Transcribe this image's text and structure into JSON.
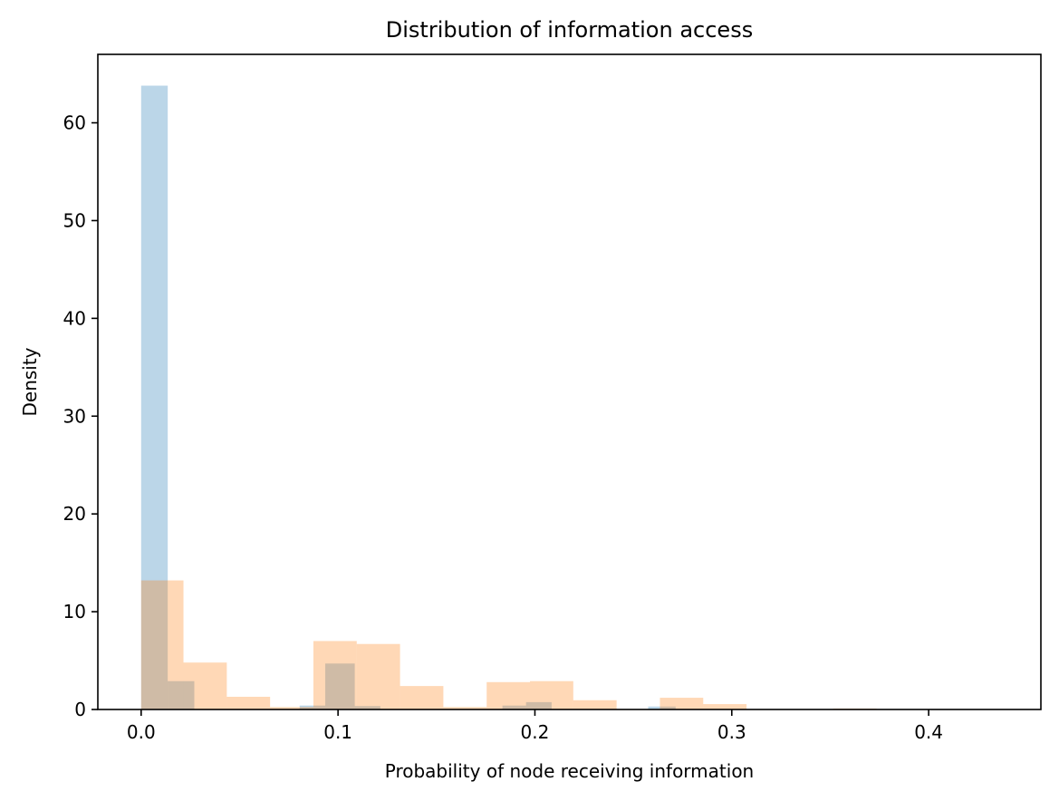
{
  "chart_data": {
    "type": "bar",
    "title": "Distribution of information access",
    "xlabel": "Probability of node receiving information",
    "ylabel": "Density",
    "xlim": [
      -0.022,
      0.457
    ],
    "ylim": [
      0,
      67
    ],
    "xticks": [
      0.0,
      0.1,
      0.2,
      0.3,
      0.4
    ],
    "xtick_labels": [
      "0.0",
      "0.1",
      "0.2",
      "0.3",
      "0.4"
    ],
    "yticks": [
      0,
      10,
      20,
      30,
      40,
      50,
      60
    ],
    "ytick_labels": [
      "0",
      "10",
      "20",
      "30",
      "40",
      "50",
      "60"
    ],
    "grid": false,
    "histogram": true,
    "series": [
      {
        "color": "#1f77b4",
        "alpha": 0.3,
        "bins": [
          {
            "x0": 0.0,
            "x1": 0.0135,
            "density": 63.8
          },
          {
            "x0": 0.0135,
            "x1": 0.027,
            "density": 2.9
          },
          {
            "x0": 0.0805,
            "x1": 0.0935,
            "density": 0.4
          },
          {
            "x0": 0.0935,
            "x1": 0.1085,
            "density": 4.7
          },
          {
            "x0": 0.1085,
            "x1": 0.1215,
            "density": 0.35
          },
          {
            "x0": 0.1835,
            "x1": 0.1955,
            "density": 0.4
          },
          {
            "x0": 0.1955,
            "x1": 0.2085,
            "density": 0.75
          },
          {
            "x0": 0.2575,
            "x1": 0.2715,
            "density": 0.3
          }
        ]
      },
      {
        "color": "#ff7f0e",
        "alpha": 0.3,
        "bins": [
          {
            "x0": 0.0,
            "x1": 0.0215,
            "density": 13.2
          },
          {
            "x0": 0.0215,
            "x1": 0.0435,
            "density": 4.8
          },
          {
            "x0": 0.0435,
            "x1": 0.0655,
            "density": 1.3
          },
          {
            "x0": 0.0655,
            "x1": 0.0875,
            "density": 0.25
          },
          {
            "x0": 0.0875,
            "x1": 0.1095,
            "density": 7.0
          },
          {
            "x0": 0.1095,
            "x1": 0.1315,
            "density": 6.7
          },
          {
            "x0": 0.1315,
            "x1": 0.1535,
            "density": 2.4
          },
          {
            "x0": 0.1535,
            "x1": 0.1755,
            "density": 0.25
          },
          {
            "x0": 0.1755,
            "x1": 0.1975,
            "density": 2.8
          },
          {
            "x0": 0.1975,
            "x1": 0.2195,
            "density": 2.9
          },
          {
            "x0": 0.2195,
            "x1": 0.2415,
            "density": 0.95
          },
          {
            "x0": 0.2635,
            "x1": 0.2855,
            "density": 1.2
          },
          {
            "x0": 0.2855,
            "x1": 0.3075,
            "density": 0.55
          },
          {
            "x0": 0.3515,
            "x1": 0.3735,
            "density": 0.1
          }
        ]
      }
    ]
  }
}
